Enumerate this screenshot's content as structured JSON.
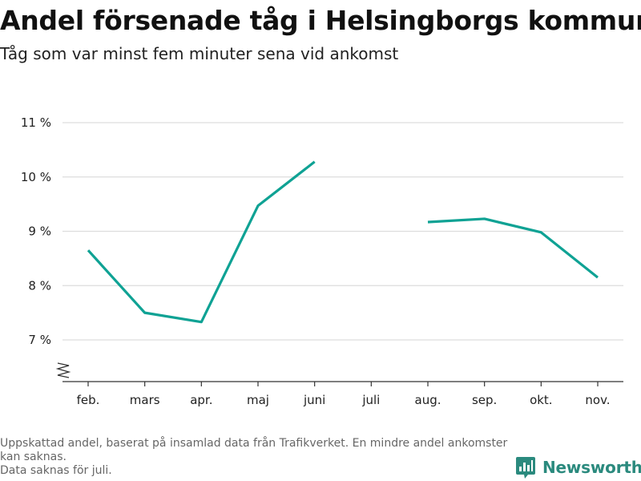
{
  "header": {
    "title": "Andel försenade tåg i Helsingborgs kommun",
    "subtitle": "Tåg som var minst fem minuter sena vid ankomst"
  },
  "chart_data": {
    "type": "line",
    "title": "Andel försenade tåg i Helsingborgs kommun",
    "subtitle": "Tåg som var minst fem minuter sena vid ankomst",
    "xlabel": "",
    "ylabel": "",
    "categories": [
      "feb.",
      "mars",
      "apr.",
      "maj",
      "juni",
      "juli",
      "aug.",
      "sep.",
      "okt.",
      "nov."
    ],
    "series": [
      {
        "values": [
          8.65,
          7.5,
          7.33,
          9.47,
          10.28,
          null,
          9.17,
          9.23,
          8.98,
          8.15
        ],
        "color": "#0fa294"
      }
    ],
    "yticks": [
      7,
      8,
      9,
      10,
      11
    ],
    "ytick_labels": [
      "7 %",
      "8 %",
      "9 %",
      "10 %",
      "11 %"
    ],
    "ylim": [
      6.2,
      11
    ],
    "grid": true,
    "axis_break": true,
    "legend": "none"
  },
  "footer": {
    "note_line1": "Uppskattad andel, baserat på insamlad data från Trafikverket. En mindre andel ankomster kan saknas.",
    "note_line2": "Data saknas för juli.",
    "brand": "Newsworthy",
    "brand_color": "#2b8a7e",
    "logo_icon": "newsworthy-logo-icon"
  }
}
